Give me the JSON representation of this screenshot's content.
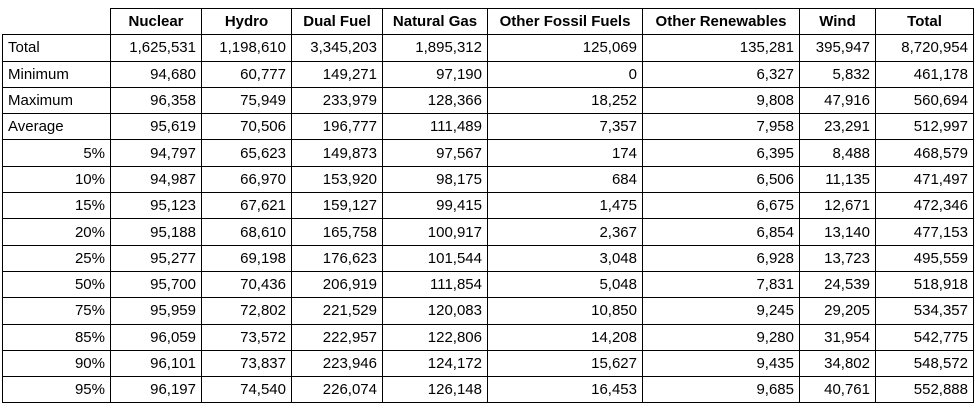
{
  "accent_colors": {
    "border": "#000000",
    "text": "#000000",
    "background": "#ffffff"
  },
  "chart_data": {
    "type": "table",
    "title": "",
    "columns": [
      "",
      "Nuclear",
      "Hydro",
      "Dual Fuel",
      "Natural Gas",
      "Other Fossil Fuels",
      "Other Renewables",
      "Wind",
      "Total"
    ],
    "rows": [
      {
        "label": "Total",
        "label_align": "left",
        "values": [
          "1,625,531",
          "1,198,610",
          "3,345,203",
          "1,895,312",
          "125,069",
          "135,281",
          "395,947",
          "8,720,954"
        ]
      },
      {
        "label": "Minimum",
        "label_align": "left",
        "values": [
          "94,680",
          "60,777",
          "149,271",
          "97,190",
          "0",
          "6,327",
          "5,832",
          "461,178"
        ]
      },
      {
        "label": "Maximum",
        "label_align": "left",
        "values": [
          "96,358",
          "75,949",
          "233,979",
          "128,366",
          "18,252",
          "9,808",
          "47,916",
          "560,694"
        ]
      },
      {
        "label": "Average",
        "label_align": "left",
        "values": [
          "95,619",
          "70,506",
          "196,777",
          "111,489",
          "7,357",
          "7,958",
          "23,291",
          "512,997"
        ]
      },
      {
        "label": "5%",
        "label_align": "right",
        "values": [
          "94,797",
          "65,623",
          "149,873",
          "97,567",
          "174",
          "6,395",
          "8,488",
          "468,579"
        ]
      },
      {
        "label": "10%",
        "label_align": "right",
        "values": [
          "94,987",
          "66,970",
          "153,920",
          "98,175",
          "684",
          "6,506",
          "11,135",
          "471,497"
        ]
      },
      {
        "label": "15%",
        "label_align": "right",
        "values": [
          "95,123",
          "67,621",
          "159,127",
          "99,415",
          "1,475",
          "6,675",
          "12,671",
          "472,346"
        ]
      },
      {
        "label": "20%",
        "label_align": "right",
        "values": [
          "95,188",
          "68,610",
          "165,758",
          "100,917",
          "2,367",
          "6,854",
          "13,140",
          "477,153"
        ]
      },
      {
        "label": "25%",
        "label_align": "right",
        "values": [
          "95,277",
          "69,198",
          "176,623",
          "101,544",
          "3,048",
          "6,928",
          "13,723",
          "495,559"
        ]
      },
      {
        "label": "50%",
        "label_align": "right",
        "values": [
          "95,700",
          "70,436",
          "206,919",
          "111,854",
          "5,048",
          "7,831",
          "24,539",
          "518,918"
        ]
      },
      {
        "label": "75%",
        "label_align": "right",
        "values": [
          "95,959",
          "72,802",
          "221,529",
          "120,083",
          "10,850",
          "9,245",
          "29,205",
          "534,357"
        ]
      },
      {
        "label": "85%",
        "label_align": "right",
        "values": [
          "96,059",
          "73,572",
          "222,957",
          "122,806",
          "14,208",
          "9,280",
          "31,954",
          "542,775"
        ]
      },
      {
        "label": "90%",
        "label_align": "right",
        "values": [
          "96,101",
          "73,837",
          "223,946",
          "124,172",
          "15,627",
          "9,435",
          "34,802",
          "548,572"
        ]
      },
      {
        "label": "95%",
        "label_align": "right",
        "values": [
          "96,197",
          "74,540",
          "226,074",
          "126,148",
          "16,453",
          "9,685",
          "40,761",
          "552,888"
        ]
      }
    ]
  }
}
